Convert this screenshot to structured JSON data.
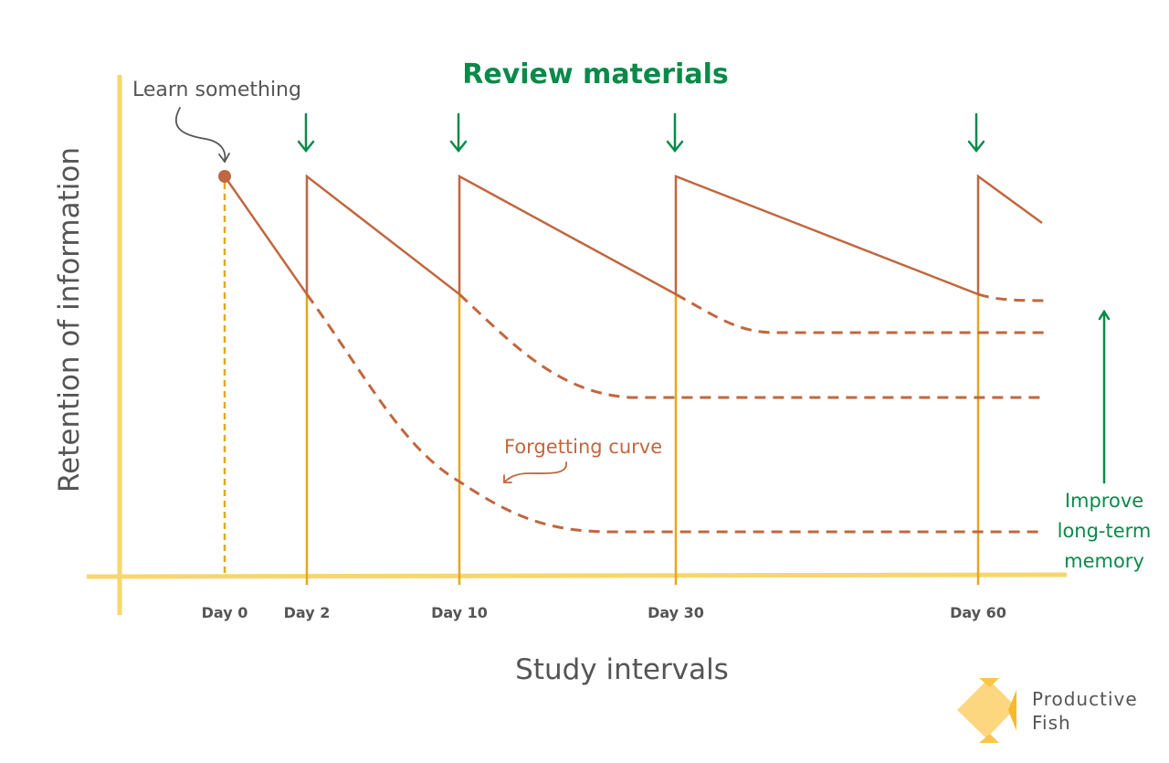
{
  "title": "Review materials",
  "annotations": {
    "learn": "Learn something",
    "forgetting": "Forgetting curve",
    "improve": [
      "Improve",
      "long-term",
      "memory"
    ]
  },
  "axes": {
    "x_label": "Study intervals",
    "y_label": "Retention of information",
    "ticks": [
      "Day 0",
      "Day 2",
      "Day 10",
      "Day 30",
      "Day 60"
    ]
  },
  "logo": {
    "line1": "Productive",
    "line2": "Fish"
  },
  "colors": {
    "curve": "#c0673f",
    "axis": "#f6d66e",
    "interval_line": "#e3a81a",
    "accent_green": "#0a8a4a",
    "text_gray": "#555555"
  }
}
